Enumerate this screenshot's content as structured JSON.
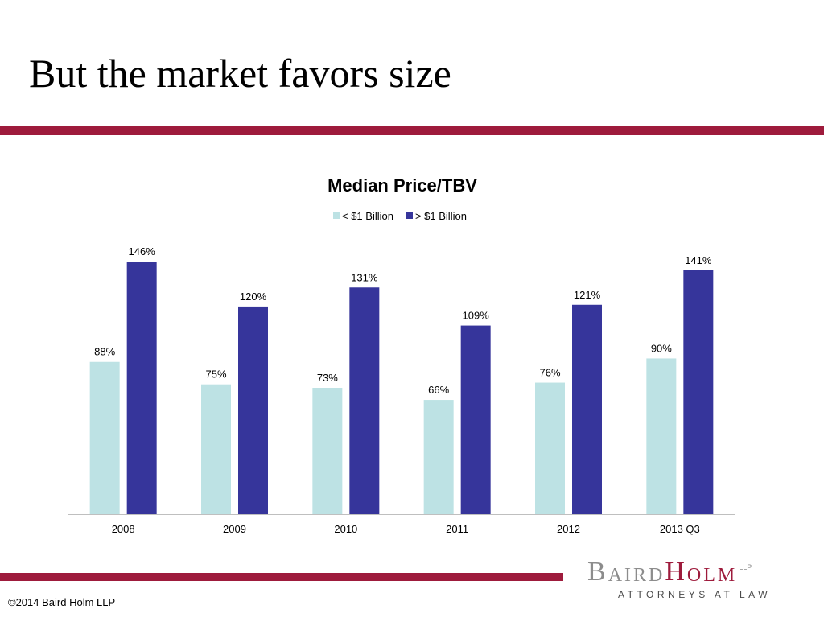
{
  "slide": {
    "title": "But the market favors size",
    "copyright": "©2014 Baird Holm LLP",
    "logo": {
      "baird_b": "B",
      "baird_rest": "AIRD",
      "holm_h": "H",
      "holm_rest": "OLM",
      "llp": "LLP",
      "tagline": "ATTORNEYS AT LAW"
    }
  },
  "colors": {
    "accent_rule": "#9e1b3c",
    "logo_gray": "#8c8c8c"
  },
  "chart_data": {
    "type": "bar",
    "title": "Median Price/TBV",
    "categories": [
      "2008",
      "2009",
      "2010",
      "2011",
      "2012",
      "2013 Q3"
    ],
    "series": [
      {
        "name": "< $1 Billion",
        "color": "#bde2e4",
        "values": [
          88,
          75,
          73,
          66,
          76,
          90
        ],
        "labels": [
          "88%",
          "75%",
          "73%",
          "66%",
          "76%",
          "90%"
        ]
      },
      {
        "name": "> $1 Billion",
        "color": "#36359b",
        "values": [
          146,
          120,
          131,
          109,
          121,
          141
        ],
        "labels": [
          "146%",
          "120%",
          "131%",
          "109%",
          "121%",
          "141%"
        ]
      }
    ],
    "ylim": [
      0,
      146
    ],
    "legend_position": "top",
    "grid": false,
    "value_unit": "%"
  }
}
